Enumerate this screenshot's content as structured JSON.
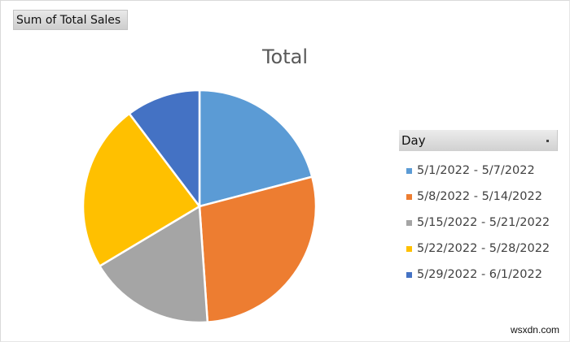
{
  "field_button": {
    "label": "Sum of Total Sales"
  },
  "title": "Total",
  "legend": {
    "header": "Day",
    "items": [
      {
        "label": "5/1/2022 - 5/7/2022",
        "color": "#5b9bd5"
      },
      {
        "label": "5/8/2022 - 5/14/2022",
        "color": "#ed7d31"
      },
      {
        "label": "5/15/2022 - 5/21/2022",
        "color": "#a5a5a5"
      },
      {
        "label": "5/22/2022 - 5/28/2022",
        "color": "#ffc000"
      },
      {
        "label": "5/29/2022 - 6/1/2022",
        "color": "#4472c4"
      }
    ]
  },
  "watermark": "wsxdn.com",
  "chart_data": {
    "type": "pie",
    "title": "Total",
    "categories": [
      "5/1/2022 - 5/7/2022",
      "5/8/2022 - 5/14/2022",
      "5/15/2022 - 5/21/2022",
      "5/22/2022 - 5/28/2022",
      "5/29/2022 - 6/1/2022"
    ],
    "values": [
      20.9,
      28.0,
      17.5,
      23.3,
      10.3
    ],
    "colors": [
      "#5b9bd5",
      "#ed7d31",
      "#a5a5a5",
      "#ffc000",
      "#4472c4"
    ],
    "value_unit": "percent of Sum of Total Sales (estimated)",
    "legend_position": "right",
    "legend_title": "Day"
  }
}
